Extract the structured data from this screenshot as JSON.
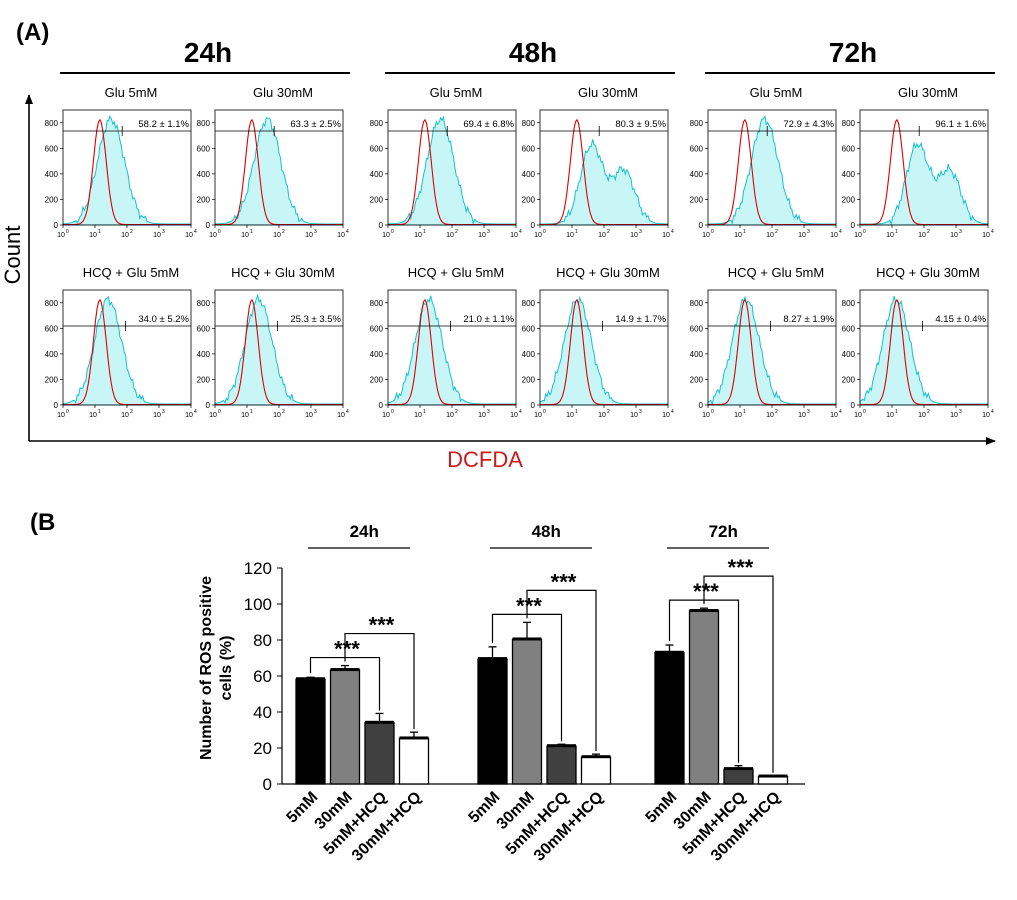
{
  "panel_a": {
    "label": "(A)",
    "y_axis_label": "Count",
    "x_axis_label": "DCFDA",
    "colors": {
      "control_line": "#e00000",
      "sample_fill": "#c8f6f7",
      "sample_line": "#16c0cc",
      "axis_label_red": "#cc1a1a"
    },
    "y_ticks": [
      "0",
      "200",
      "400",
      "600",
      "800"
    ],
    "x_ticks": [
      "10",
      "10",
      "10",
      "10",
      "10"
    ],
    "x_tick_exponents": [
      "0",
      "1",
      "2",
      "3",
      "4"
    ],
    "timepoints": [
      {
        "label": "24h",
        "panels": [
          {
            "title": "Glu 5mM",
            "stat": "58.2 ± 1.1%",
            "peak": 3.3,
            "pop_share": 0.58,
            "bimodal": false
          },
          {
            "title": "Glu 30mM",
            "stat": "63.3 ± 2.5%",
            "peak": 3.6,
            "pop_share": 0.63,
            "bimodal": false
          },
          {
            "title": "HCQ + Glu 5mM",
            "stat": "34.0 ± 5.2%",
            "peak": 3.1,
            "pop_share": 0.34,
            "bimodal": false
          },
          {
            "title": "HCQ + Glu 30mM",
            "stat": "25.3 ± 3.5%",
            "peak": 3.0,
            "pop_share": 0.25,
            "bimodal": false
          }
        ]
      },
      {
        "label": "48h",
        "panels": [
          {
            "title": "Glu 5mM",
            "stat": "69.4 ± 6.8%",
            "peak": 3.6,
            "pop_share": 0.69,
            "bimodal": false
          },
          {
            "title": "Glu 30mM",
            "stat": "80.3 ± 9.5%",
            "peak": 4.1,
            "pop_share": 0.8,
            "bimodal": true
          },
          {
            "title": "HCQ + Glu 5mM",
            "stat": "21.0 ± 1.1%",
            "peak": 2.8,
            "pop_share": 0.21,
            "bimodal": false
          },
          {
            "title": "HCQ + Glu 30mM",
            "stat": "14.9 ± 1.7%",
            "peak": 2.6,
            "pop_share": 0.15,
            "bimodal": false
          }
        ]
      },
      {
        "label": "72h",
        "panels": [
          {
            "title": "Glu 5mM",
            "stat": "72.9 ± 4.3%",
            "peak": 3.9,
            "pop_share": 0.73,
            "bimodal": false
          },
          {
            "title": "Glu 30mM",
            "stat": "96.1 ± 1.6%",
            "peak": 4.5,
            "pop_share": 0.96,
            "bimodal": true
          },
          {
            "title": "HCQ + Glu 5mM",
            "stat": "8.27 ± 1.9%",
            "peak": 2.6,
            "pop_share": 0.08,
            "bimodal": false
          },
          {
            "title": "HCQ + Glu 30mM",
            "stat": "4.15 ± 0.4%",
            "peak": 2.5,
            "pop_share": 0.04,
            "bimodal": false
          }
        ]
      }
    ]
  },
  "chart_data": {
    "type": "bar",
    "panel_label": "(B",
    "ylabel_line1": "Number of ROS positive",
    "ylabel_line2": "cells (%)",
    "ylim": [
      0,
      120
    ],
    "yticks": [
      0,
      20,
      40,
      60,
      80,
      100,
      120
    ],
    "categories": [
      "5mM",
      "30mM",
      "5mM+HCQ",
      "30mM+HCQ"
    ],
    "bar_colors": [
      "#000000",
      "#808080",
      "#404040",
      "#ffffff"
    ],
    "significance": "***",
    "groups": [
      {
        "label": "24h",
        "values": [
          58.2,
          63.3,
          34.0,
          25.3
        ],
        "errors": [
          1.1,
          2.5,
          5.2,
          3.5
        ]
      },
      {
        "label": "48h",
        "values": [
          69.4,
          80.3,
          21.0,
          14.9
        ],
        "errors": [
          6.8,
          9.5,
          1.1,
          1.7
        ]
      },
      {
        "label": "72h",
        "values": [
          72.9,
          96.1,
          8.27,
          4.15
        ],
        "errors": [
          4.3,
          1.6,
          1.9,
          0.4
        ]
      }
    ]
  }
}
